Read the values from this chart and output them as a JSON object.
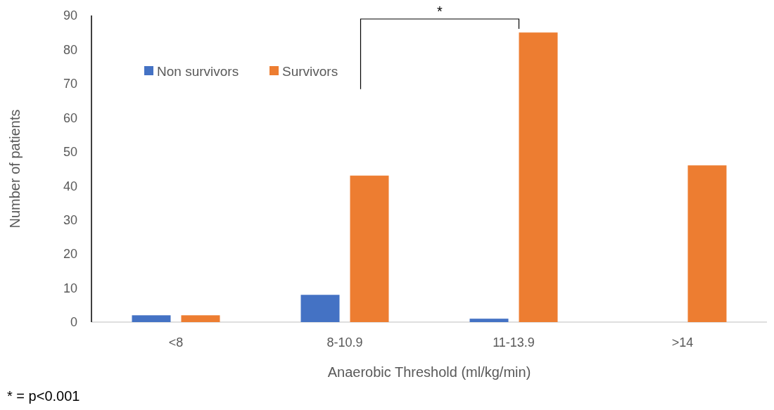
{
  "chart_data": {
    "type": "bar",
    "xlabel": "Anaerobic Threshold (ml/kg/min)",
    "ylabel": "Number of patients",
    "categories": [
      "<8",
      "8-10.9",
      "11-13.9",
      ">14"
    ],
    "series": [
      {
        "name": "Non survivors",
        "color": "#4472c4",
        "values": [
          2,
          8,
          1,
          0
        ]
      },
      {
        "name": "Survivors",
        "color": "#ed7d31",
        "values": [
          2,
          43,
          85,
          46
        ]
      }
    ],
    "ylim": [
      0,
      90
    ],
    "yticks": [
      0,
      10,
      20,
      30,
      40,
      50,
      60,
      70,
      80,
      90
    ],
    "grid": false,
    "legend": "top left",
    "annotations": [
      "*",
      "* = p<0.001"
    ]
  }
}
